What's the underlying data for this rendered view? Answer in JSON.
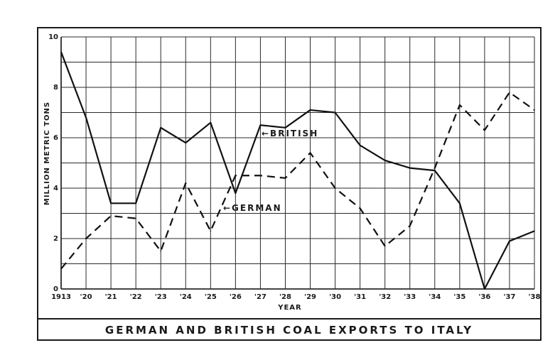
{
  "chart_data": {
    "type": "line",
    "title": "GERMAN AND BRITISH COAL EXPORTS TO ITALY",
    "xlabel": "YEAR",
    "ylabel": "MILLION METRIC TONS",
    "ylim": [
      0,
      10
    ],
    "y_ticks": [
      "0",
      "2",
      "4",
      "6",
      "8",
      "10"
    ],
    "grid": true,
    "categories": [
      "1913",
      "'20",
      "'21",
      "'22",
      "'23",
      "'24",
      "'25",
      "'26",
      "'27",
      "'28",
      "'29",
      "'30",
      "'31",
      "'32",
      "'33",
      "'34",
      "'35",
      "'36",
      "'37",
      "'38"
    ],
    "series": [
      {
        "name": "BRITISH",
        "style": "solid",
        "values": [
          9.4,
          6.8,
          3.4,
          3.4,
          6.4,
          5.8,
          6.6,
          3.8,
          6.5,
          6.4,
          7.1,
          7.0,
          5.7,
          5.1,
          4.8,
          4.7,
          3.4,
          0.0,
          1.9,
          2.3
        ]
      },
      {
        "name": "GERMAN",
        "style": "dashed",
        "values": [
          0.8,
          2.0,
          2.9,
          2.8,
          1.5,
          4.2,
          2.3,
          4.5,
          4.5,
          4.4,
          5.4,
          4.0,
          3.2,
          1.7,
          2.5,
          4.8,
          7.3,
          6.3,
          7.8,
          7.1
        ]
      }
    ],
    "annotations": [
      {
        "text": "←BRITISH",
        "series": "BRITISH"
      },
      {
        "text": "←GERMAN",
        "series": "GERMAN"
      }
    ]
  }
}
